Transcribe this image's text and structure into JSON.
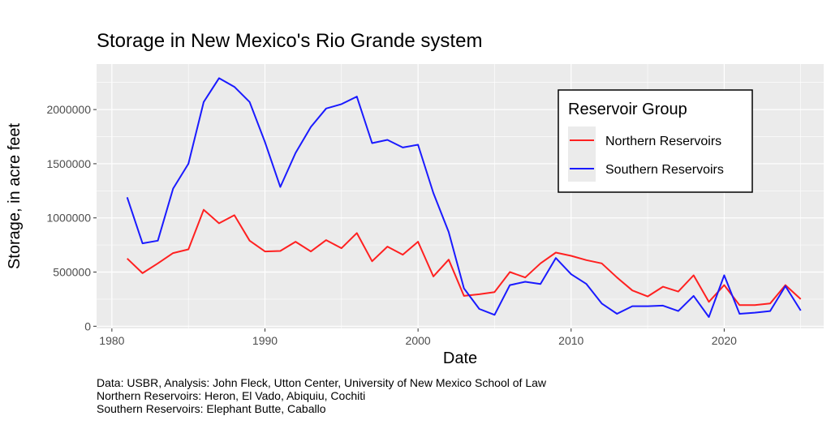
{
  "chart_data": {
    "type": "line",
    "title": "Storage in New Mexico's Rio Grande system",
    "xlabel": "Date",
    "ylabel": "Storage, in acre feet",
    "xlim": [
      1979,
      2026.5
    ],
    "ylim": [
      -20000,
      2420000
    ],
    "x_ticks": [
      1980,
      1990,
      2000,
      2010,
      2020
    ],
    "x_tick_labels": [
      "1980",
      "1990",
      "2000",
      "2010",
      "2020"
    ],
    "y_ticks": [
      0,
      500000,
      1000000,
      1500000,
      2000000
    ],
    "y_tick_labels": [
      "0",
      "500000",
      "1000000",
      "1500000",
      "2000000"
    ],
    "grid": true,
    "legend_title": "Reservoir Group",
    "legend_position": "top-right",
    "series": [
      {
        "name": "Northern Reservoirs",
        "color": "#ff2020",
        "x": [
          1981,
          1982,
          1983,
          1984,
          1985,
          1986,
          1987,
          1988,
          1989,
          1990,
          1991,
          1992,
          1993,
          1994,
          1995,
          1996,
          1997,
          1998,
          1999,
          2000,
          2001,
          2002,
          2003,
          2004,
          2005,
          2006,
          2007,
          2008,
          2009,
          2010,
          2011,
          2012,
          2013,
          2014,
          2015,
          2016,
          2017,
          2018,
          2019,
          2020,
          2021,
          2022,
          2023,
          2024,
          2025
        ],
        "values": [
          625000,
          490000,
          580000,
          675000,
          710000,
          1075000,
          950000,
          1025000,
          790000,
          690000,
          695000,
          780000,
          690000,
          795000,
          720000,
          860000,
          600000,
          735000,
          660000,
          780000,
          460000,
          615000,
          280000,
          295000,
          315000,
          500000,
          450000,
          580000,
          680000,
          650000,
          610000,
          580000,
          450000,
          330000,
          275000,
          365000,
          320000,
          470000,
          225000,
          380000,
          195000,
          195000,
          210000,
          380000,
          250000
        ]
      },
      {
        "name": "Southern Reservoirs",
        "color": "#1a1aff",
        "x": [
          1981,
          1982,
          1983,
          1984,
          1985,
          1986,
          1987,
          1988,
          1989,
          1990,
          1991,
          1992,
          1993,
          1994,
          1995,
          1996,
          1997,
          1998,
          1999,
          2000,
          2001,
          2002,
          2003,
          2004,
          2005,
          2006,
          2007,
          2008,
          2009,
          2010,
          2011,
          2012,
          2013,
          2014,
          2015,
          2016,
          2017,
          2018,
          2019,
          2020,
          2021,
          2022,
          2023,
          2024,
          2025
        ],
        "values": [
          1190000,
          765000,
          790000,
          1270000,
          1500000,
          2070000,
          2290000,
          2210000,
          2070000,
          1700000,
          1285000,
          1600000,
          1840000,
          2010000,
          2050000,
          2120000,
          1690000,
          1720000,
          1650000,
          1675000,
          1230000,
          870000,
          350000,
          160000,
          105000,
          380000,
          410000,
          390000,
          630000,
          480000,
          390000,
          210000,
          115000,
          185000,
          185000,
          190000,
          140000,
          280000,
          85000,
          470000,
          115000,
          125000,
          140000,
          370000,
          145000
        ]
      }
    ]
  },
  "captions": {
    "line1": "Data: USBR, Analysis: John Fleck, Utton Center, University of New Mexico School of Law",
    "line2": "Northern Reservoirs: Heron, El Vado, Abiquiu, Cochiti",
    "line3": "Southern Reservoirs: Elephant Butte, Caballo"
  }
}
